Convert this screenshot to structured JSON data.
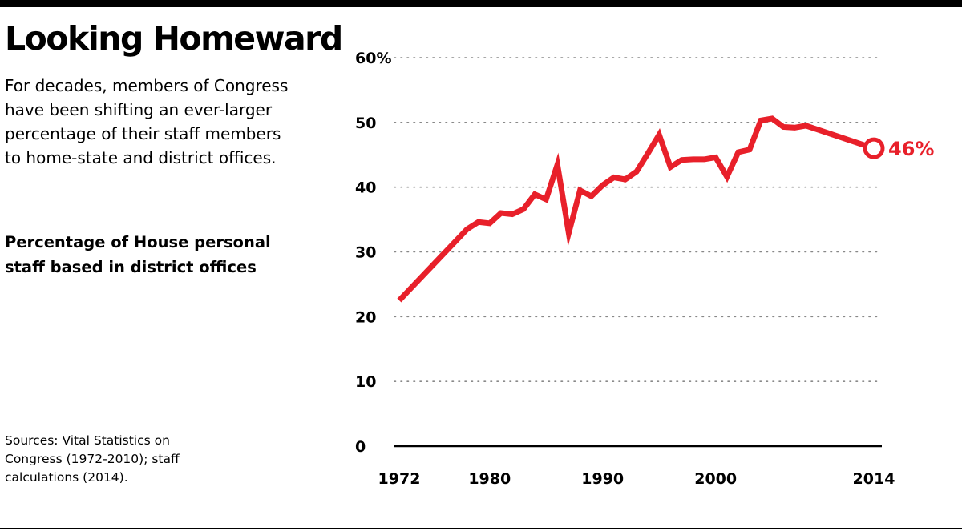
{
  "header": {
    "title": "Looking Homeward",
    "dek": "For decades, members of Congress have been shifting an ever-larger percentage of their staff members to home-state and district offices.",
    "subtitle": "Percentage of House personal staff based in district offices"
  },
  "footer": {
    "source": "Sources: Vital Statistics on Congress (1972-2010); staff calculations (2014)."
  },
  "colors": {
    "line": "#e8202a",
    "grid": "#888888",
    "axis": "#000000"
  },
  "chart_data": {
    "type": "line",
    "title": "Percentage of House personal staff based in district offices",
    "xlabel": "",
    "ylabel": "",
    "ylim": [
      0,
      60
    ],
    "xlim": [
      1972,
      2014
    ],
    "grid": true,
    "y_ticks": [
      "0",
      "10",
      "20",
      "30",
      "40",
      "50",
      "60%"
    ],
    "y_tick_values": [
      0,
      10,
      20,
      30,
      40,
      50,
      60
    ],
    "x_ticks": [
      "1972",
      "1980",
      "1990",
      "2000",
      "2014"
    ],
    "x_tick_values": [
      1972,
      1980,
      1990,
      2000,
      2014
    ],
    "end_label": "46%",
    "series": [
      {
        "x": [
          1972,
          1978,
          1979,
          1980,
          1981,
          1982,
          1983,
          1984,
          1985,
          1986,
          1987,
          1988,
          1989,
          1990,
          1991,
          1992,
          1993,
          1994,
          1995,
          1996,
          1997,
          1998,
          1999,
          2000,
          2001,
          2002,
          2003,
          2004,
          2005,
          2006,
          2007,
          2008,
          2014
        ],
        "values": [
          22.5,
          33.5,
          34.6,
          34.4,
          36.0,
          35.8,
          36.6,
          38.9,
          38.1,
          43.5,
          32.9,
          39.5,
          38.6,
          40.3,
          41.5,
          41.2,
          42.4,
          45.2,
          48.1,
          43.1,
          44.2,
          44.3,
          44.3,
          44.6,
          41.6,
          45.4,
          45.8,
          50.3,
          50.6,
          49.3,
          49.2,
          49.5,
          46.0
        ]
      }
    ]
  }
}
